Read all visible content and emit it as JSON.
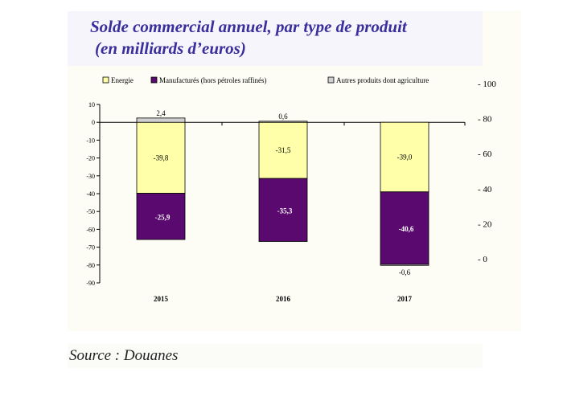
{
  "header": {
    "title_line1": "Solde commercial annuel, par type de produit",
    "title_line2": "(en milliards d’euros)"
  },
  "footer": {
    "source": "Source : Douanes"
  },
  "colors": {
    "energie": "#ffffaa",
    "manufactures": "#5a0a6e",
    "autres": "#d0d0d0",
    "title": "#3a2e9c"
  },
  "chart_data": {
    "type": "bar",
    "stacked": true,
    "title": "Solde commercial annuel, par type de produit (en milliards d’euros)",
    "categories": [
      "2015",
      "2016",
      "2017"
    ],
    "series": [
      {
        "name": "Energie",
        "values": [
          -39.8,
          -31.5,
          -39.0
        ],
        "labels": [
          "-39,8",
          "-31,5",
          "-39,0"
        ],
        "color": "#ffffaa"
      },
      {
        "name": "Manufacturés (hors pétroles raffinés)",
        "values": [
          -25.9,
          -35.3,
          -40.6
        ],
        "labels": [
          "-25,9",
          "-35,3",
          "-40,6"
        ],
        "color": "#5a0a6e"
      },
      {
        "name": "Autres produits dont agriculture",
        "values": [
          2.4,
          0.6,
          -0.6
        ],
        "labels": [
          "2,4",
          "0,6",
          "-0,6"
        ],
        "color": "#d0d0d0"
      }
    ],
    "ylim": [
      -90,
      10
    ],
    "yticks": [
      "10",
      "0",
      "-10",
      "-20",
      "-30",
      "-40",
      "-50",
      "-60",
      "-70",
      "-80",
      "-90"
    ],
    "y2ticks": [
      "100",
      "80",
      "60",
      "40",
      "20",
      "0"
    ],
    "legend_position": "top",
    "grid": false
  }
}
